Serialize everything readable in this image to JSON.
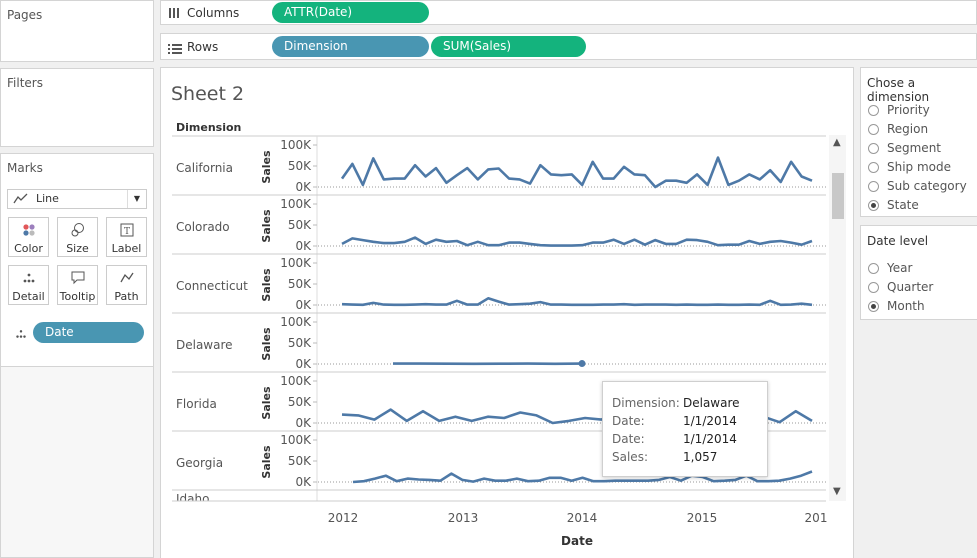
{
  "pages": {
    "title": "Pages"
  },
  "filters": {
    "title": "Filters"
  },
  "marks": {
    "title": "Marks",
    "type_select": "Line",
    "buttons": {
      "color": "Color",
      "size": "Size",
      "label": "Label",
      "detail": "Detail",
      "tooltip": "Tooltip",
      "path": "Path"
    },
    "date_pill": "Date"
  },
  "shelves": {
    "columns_label": "Columns",
    "rows_label": "Rows",
    "columns_pills": [
      "ATTR(Date)"
    ],
    "rows_pills": [
      "Dimension",
      "SUM(Sales)"
    ]
  },
  "sheet": {
    "title": "Sheet 2",
    "dimension_header": "Dimension",
    "x_axis_title": "Date",
    "x_ticks": [
      "2012",
      "2013",
      "2014",
      "2015",
      "201"
    ],
    "y_ticks": [
      "100K",
      "50K",
      "0K"
    ],
    "y_axis_title": "Sales",
    "rows": [
      "California",
      "Colorado",
      "Connecticut",
      "Delaware",
      "Florida",
      "Georgia",
      "Idaho"
    ]
  },
  "dimension_param": {
    "title": "Chose a dimension",
    "options": [
      "Priority",
      "Region",
      "Segment",
      "Ship mode",
      "Sub category",
      "State"
    ],
    "selected": "State"
  },
  "date_level_param": {
    "title": "Date level",
    "options": [
      "Year",
      "Quarter",
      "Month"
    ],
    "selected": "Month"
  },
  "tooltip": {
    "k1": "Dimension:",
    "v1": "Delaware",
    "k2": "Date:",
    "v2": "1/1/2014",
    "k3": "Date:",
    "v3": "1/1/2014",
    "k4": "Sales:",
    "v4": "1,057"
  },
  "colors": {
    "line": "#4e79a7",
    "green_pill": "#14b37d",
    "blue_pill": "#4996b2"
  },
  "chart_data": {
    "type": "line",
    "title": "Sheet 2",
    "xlabel": "Date",
    "ylabel": "Sales",
    "ylim": [
      0,
      100000
    ],
    "x_ticks": [
      "2012",
      "2013",
      "2014",
      "2015",
      "201"
    ],
    "series": [
      {
        "name": "California",
        "values": [
          20000,
          55000,
          5000,
          68000,
          18000,
          20000,
          20000,
          52000,
          25000,
          45000,
          10000,
          28000,
          45000,
          18000,
          42000,
          44000,
          20000,
          18000,
          8000,
          52000,
          30000,
          28000,
          30000,
          5000,
          60000,
          20000,
          20000,
          48000,
          30000,
          28000,
          0,
          15000,
          15000,
          10000,
          30000,
          5000,
          70000,
          5000,
          15000,
          30000,
          18000,
          40000,
          12000,
          60000,
          25000,
          15000
        ]
      },
      {
        "name": "Colorado",
        "values": [
          5000,
          18000,
          14000,
          10000,
          7000,
          7000,
          10000,
          20000,
          5000,
          15000,
          10000,
          12000,
          2000,
          10000,
          2000,
          2000,
          8000,
          8000,
          5000,
          2000,
          1000,
          1000,
          1000,
          2000,
          8000,
          8000,
          15000,
          5000,
          15000,
          3000,
          14000,
          5000,
          5000,
          15000,
          14000,
          10000,
          2000,
          3000,
          3000,
          12000,
          5000,
          10000,
          12000,
          8000,
          3000,
          12000
        ]
      },
      {
        "name": "Connecticut",
        "values": [
          2000,
          1000,
          500,
          5000,
          1000,
          500,
          500,
          1000,
          2000,
          1000,
          1000,
          10000,
          1000,
          1000,
          16000,
          8000,
          1000,
          2000,
          3000,
          7000,
          1000,
          1000,
          500,
          500,
          500,
          1000,
          1000,
          2000,
          500,
          1000,
          1000,
          1000,
          500,
          1000,
          500,
          500,
          1000,
          500,
          500,
          1000,
          500,
          10000,
          500,
          1000,
          3000,
          500
        ]
      },
      {
        "name": "Delaware",
        "values": [
          1000,
          1057,
          800,
          500,
          600,
          1000,
          400,
          1057
        ]
      },
      {
        "name": "Florida",
        "values": [
          20000,
          18000,
          8000,
          32000,
          5000,
          28000,
          5000,
          15000,
          5000,
          15000,
          12000,
          25000,
          18000,
          0,
          5000,
          12000,
          8000,
          28000,
          5000,
          18000,
          3000,
          15000,
          10000,
          30000,
          8000,
          18000,
          15000,
          2000,
          28000,
          5000
        ]
      },
      {
        "name": "Georgia",
        "values": [
          0,
          2000,
          8000,
          15000,
          2000,
          8000,
          6000,
          5000,
          3000,
          20000,
          5000,
          1000,
          8000,
          3000,
          3000,
          8000,
          2000,
          3000,
          10000,
          10000,
          3000,
          10000,
          2000,
          2000,
          3000,
          3000,
          3000,
          3000,
          5000,
          12000,
          3000,
          15000,
          12000,
          2000,
          3000,
          5000,
          15000,
          2000,
          2000,
          3000,
          8000,
          15000,
          25000
        ]
      }
    ]
  }
}
